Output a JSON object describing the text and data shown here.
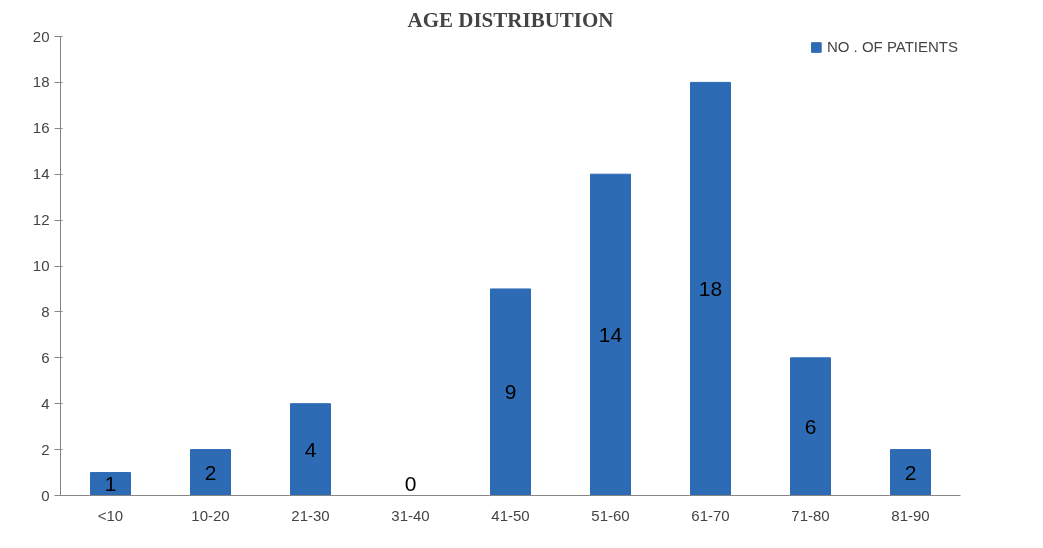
{
  "chart_data": {
    "type": "bar",
    "title": "AGE DISTRIBUTION",
    "categories": [
      "<10",
      "10-20",
      "21-30",
      "31-40",
      "41-50",
      "51-60",
      "61-70",
      "71-80",
      "81-90"
    ],
    "series": [
      {
        "name": "NO . OF PATIENTS",
        "color": "#2e6bb5",
        "values": [
          1,
          2,
          4,
          0,
          9,
          14,
          18,
          6,
          2
        ]
      }
    ],
    "ylim": [
      0,
      20
    ],
    "yticks": [
      0,
      2,
      4,
      6,
      8,
      10,
      12,
      14,
      16,
      18,
      20
    ],
    "data_labels": true,
    "legend": "top right",
    "grid": false
  }
}
